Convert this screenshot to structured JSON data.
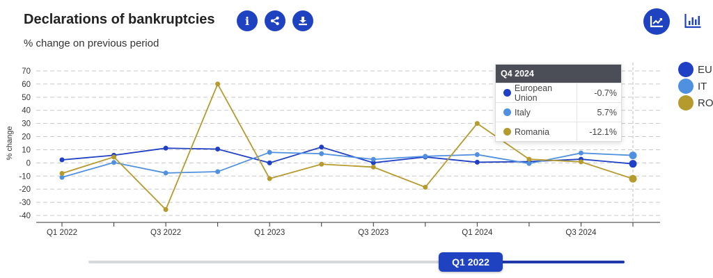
{
  "header": {
    "title": "Declarations of bankruptcies",
    "subtitle": "% change on previous period",
    "buttons": [
      {
        "icon": "info-icon",
        "label": "i"
      },
      {
        "icon": "share-icon"
      },
      {
        "icon": "download-icon"
      }
    ],
    "view_toggles": [
      {
        "icon": "line-chart-icon",
        "active": true
      },
      {
        "icon": "bar-chart-icon",
        "active": false
      }
    ]
  },
  "legend": [
    {
      "label": "EU",
      "color": "#1f3fc4"
    },
    {
      "label": "IT",
      "color": "#5090e0"
    },
    {
      "label": "RO",
      "color": "#b59a2e"
    }
  ],
  "tooltip": {
    "title": "Q4 2024",
    "rows": [
      {
        "name": "European Union",
        "value": "-0.7%",
        "color": "#1f3fc4"
      },
      {
        "name": "Italy",
        "value": "5.7%",
        "color": "#5090e0"
      },
      {
        "name": "Romania",
        "value": "-12.1%",
        "color": "#b59a2e"
      }
    ]
  },
  "slider": {
    "label": "Q1 2022"
  },
  "chart_data": {
    "type": "line",
    "ylabel": "% change",
    "ylim": [
      -40,
      70
    ],
    "yticks": [
      70,
      60,
      50,
      40,
      30,
      20,
      10,
      0,
      -10,
      -20,
      -30,
      -40
    ],
    "grid": true,
    "legend_position": "right",
    "categories": [
      "Q1 2022",
      "Q2 2022",
      "Q3 2022",
      "Q4 2022",
      "Q1 2023",
      "Q2 2023",
      "Q3 2023",
      "Q4 2023",
      "Q1 2024",
      "Q2 2024",
      "Q3 2024",
      "Q4 2024"
    ],
    "xtick_labels": [
      "Q1 2022",
      "",
      "Q3 2022",
      "",
      "Q1 2023",
      "",
      "Q3 2023",
      "",
      "Q1 2024",
      "",
      "Q3 2024",
      ""
    ],
    "series": [
      {
        "name": "European Union",
        "color": "#1f3fc4",
        "values": [
          2.3,
          5.8,
          11.2,
          10.5,
          0.0,
          12.0,
          0.1,
          4.5,
          0.5,
          1.0,
          2.8,
          -0.7
        ]
      },
      {
        "name": "Italy",
        "color": "#5090e0",
        "values": [
          -11.0,
          0.3,
          -7.7,
          -6.7,
          8.0,
          7.0,
          2.7,
          5.0,
          6.3,
          -0.5,
          7.5,
          5.7
        ]
      },
      {
        "name": "Romania",
        "color": "#b59a2e",
        "values": [
          -8.0,
          4.5,
          -35.5,
          60.0,
          -12.0,
          -1.0,
          -3.2,
          -18.5,
          30.0,
          2.8,
          0.8,
          -12.1
        ]
      }
    ],
    "highlighted_category": "Q4 2024"
  }
}
